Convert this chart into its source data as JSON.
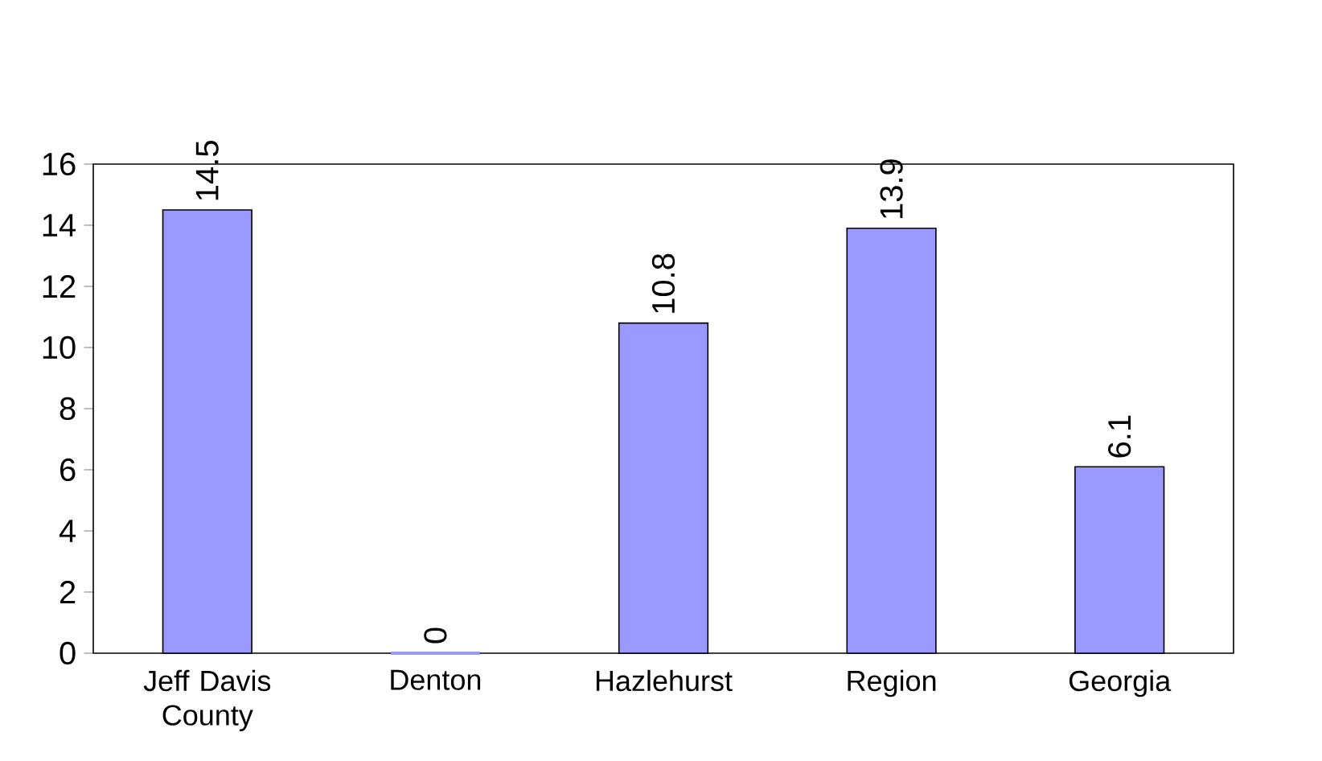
{
  "chart_data": {
    "type": "bar",
    "categories": [
      "Jeff Davis County",
      "Denton",
      "Hazlehurst",
      "Region",
      "Georgia"
    ],
    "values": [
      14.5,
      0,
      10.8,
      13.9,
      6.1
    ],
    "color": "#9999ff",
    "ylim": [
      0,
      16
    ],
    "yticks": [
      0,
      2,
      4,
      6,
      8,
      10,
      12,
      14,
      16
    ],
    "data_labels": true,
    "grid": false
  }
}
